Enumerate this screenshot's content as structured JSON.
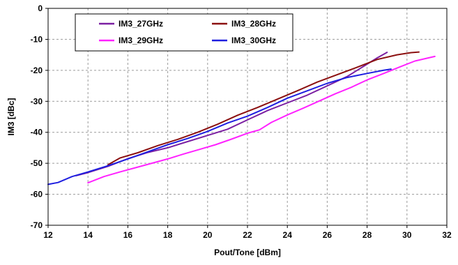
{
  "chart_data": {
    "type": "line",
    "title": "",
    "xlabel": "Pout/Tone [dBm]",
    "ylabel": "IM3 [dBc]",
    "xlim": [
      12,
      32
    ],
    "ylim": [
      -70,
      0
    ],
    "xticks": [
      12,
      14,
      16,
      18,
      20,
      22,
      24,
      26,
      28,
      30,
      32
    ],
    "yticks": [
      0,
      -10,
      -20,
      -30,
      -40,
      -50,
      -60,
      -70
    ],
    "grid": true,
    "legend_position": "top-left",
    "series": [
      {
        "name": "IM3_27GHz",
        "color": "#7b1fa2",
        "x": [
          13.4,
          14,
          15,
          16,
          17,
          18,
          19,
          20,
          21,
          22,
          23,
          24,
          25,
          26,
          27,
          28,
          28.5,
          29
        ],
        "y": [
          -54,
          -53,
          -51,
          -48.5,
          -46.5,
          -45,
          -43,
          -41,
          -39,
          -36,
          -33,
          -30.5,
          -28,
          -25,
          -22,
          -18,
          -16,
          -14.2
        ]
      },
      {
        "name": "IM3_28GHz",
        "color": "#8b1010",
        "x": [
          15,
          15.6,
          16.5,
          17.5,
          18.5,
          19.5,
          20.5,
          21.5,
          22.5,
          23.5,
          24.5,
          25.5,
          26.5,
          27.5,
          28.5,
          29.5,
          30.2,
          30.6
        ],
        "y": [
          -50.5,
          -48.3,
          -46.6,
          -44.3,
          -42.3,
          -40,
          -37.4,
          -34.5,
          -32,
          -29.3,
          -26.6,
          -23.8,
          -21.4,
          -19,
          -16.5,
          -15,
          -14.3,
          -14.1
        ]
      },
      {
        "name": "IM3_29GHz",
        "color": "#ff22ff",
        "x": [
          14,
          14.8,
          15.6,
          16.4,
          17.2,
          18,
          18.8,
          19.6,
          20.4,
          21.2,
          22,
          22.6,
          23.2,
          24,
          24.8,
          25.6,
          26.4,
          27.2,
          28,
          28.8,
          29.6,
          30.4,
          31.4
        ],
        "y": [
          -56.3,
          -54.3,
          -52.8,
          -51.4,
          -50,
          -48.6,
          -47,
          -45.5,
          -44,
          -42.2,
          -40.3,
          -39.2,
          -36.8,
          -34.4,
          -32.2,
          -29.9,
          -27.6,
          -25.5,
          -23.1,
          -21.1,
          -19,
          -17,
          -15.5
        ]
      },
      {
        "name": "IM3_30GHz",
        "color": "#1f1fe0",
        "x": [
          12,
          12.5,
          13.2,
          14,
          15,
          16,
          17,
          18,
          19,
          20,
          21,
          22,
          23,
          24,
          25,
          26,
          27,
          28,
          28.8,
          29.2
        ],
        "y": [
          -56.8,
          -56.2,
          -54.3,
          -52.8,
          -50.8,
          -48.6,
          -46.3,
          -44,
          -42,
          -39.7,
          -37,
          -34.8,
          -32,
          -29,
          -26.6,
          -24.2,
          -22.3,
          -21,
          -20,
          -19.6
        ]
      }
    ]
  }
}
